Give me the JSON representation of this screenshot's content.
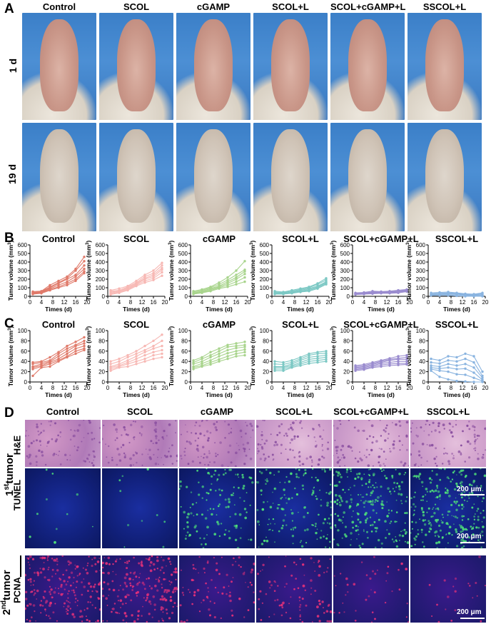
{
  "panels": {
    "a": "A",
    "b": "B",
    "c": "C",
    "d": "D"
  },
  "groups": [
    "Control",
    "SCOL",
    "cGAMP",
    "SCOL+L",
    "SCOL+cGAMP+L",
    "SSCOL+L"
  ],
  "panel_a": {
    "rows": [
      "1 d",
      "19 d"
    ]
  },
  "panel_d": {
    "stain_he": "H&E",
    "stain_tunel": "TUNEL",
    "stain_pcna": "PCNA",
    "first_tumor": {
      "num": "1",
      "sup": "st",
      "word": "tumor"
    },
    "second_tumor": {
      "num": "2",
      "sup": "nd",
      "word": "tumor"
    },
    "scale_label": "200 μm"
  },
  "colors": {
    "Control": "#e07a6a",
    "SCOL": "#f7b8b4",
    "cGAMP": "#a8d48c",
    "SCOL+L": "#7cc8c4",
    "SCOL+cGAMP+L": "#9a8ccf",
    "SSCOL+L": "#8ab4e0"
  },
  "chart_data": [
    {
      "panel": "B",
      "type": "line",
      "xlabel": "Times (d)",
      "ylabel": "Tumor volume (mm3)",
      "ylabel_main": "Tumor volume (mm",
      "ylabel_sup": "3",
      "ylabel_end": ")",
      "xticks": [
        0,
        4,
        8,
        12,
        16,
        20
      ],
      "yticks": [
        0,
        100,
        200,
        300,
        400,
        500,
        600
      ],
      "ylim": [
        0,
        600
      ],
      "xlim": [
        0,
        20
      ],
      "x": [
        1,
        4,
        7,
        10,
        13,
        16,
        19
      ],
      "groups": [
        {
          "name": "Control",
          "series": [
            [
              55,
              60,
              130,
              180,
              230,
              320,
              460
            ],
            [
              45,
              55,
              110,
              160,
              210,
              300,
              410
            ],
            [
              40,
              50,
              100,
              150,
              200,
              250,
              360
            ],
            [
              35,
              45,
              90,
              130,
              170,
              230,
              320
            ],
            [
              30,
              40,
              80,
              110,
              150,
              200,
              290
            ],
            [
              25,
              35,
              70,
              100,
              130,
              180,
              270
            ]
          ]
        },
        {
          "name": "SCOL",
          "series": [
            [
              70,
              90,
              120,
              180,
              250,
              300,
              390
            ],
            [
              60,
              70,
              110,
              160,
              230,
              270,
              360
            ],
            [
              50,
              60,
              100,
              150,
              210,
              250,
              330
            ],
            [
              40,
              55,
              90,
              140,
              200,
              230,
              310
            ],
            [
              30,
              45,
              80,
              130,
              180,
              210,
              280
            ],
            [
              20,
              40,
              70,
              120,
              160,
              190,
              240
            ]
          ]
        },
        {
          "name": "cGAMP",
          "series": [
            [
              60,
              80,
              110,
              160,
              220,
              300,
              410
            ],
            [
              50,
              70,
              100,
              140,
              190,
              250,
              310
            ],
            [
              40,
              60,
              90,
              120,
              170,
              220,
              290
            ],
            [
              35,
              50,
              80,
              110,
              150,
              200,
              260
            ],
            [
              30,
              45,
              70,
              100,
              130,
              170,
              220
            ],
            [
              25,
              40,
              60,
              90,
              110,
              140,
              170
            ]
          ]
        },
        {
          "name": "SCOL+L",
          "series": [
            [
              60,
              50,
              70,
              90,
              110,
              150,
              210
            ],
            [
              50,
              45,
              60,
              80,
              100,
              140,
              190
            ],
            [
              40,
              40,
              50,
              70,
              90,
              120,
              170
            ],
            [
              35,
              35,
              45,
              60,
              80,
              110,
              160
            ],
            [
              30,
              30,
              40,
              55,
              70,
              100,
              150
            ],
            [
              25,
              25,
              35,
              50,
              60,
              90,
              140
            ]
          ]
        },
        {
          "name": "SCOL+cGAMP+L",
          "series": [
            [
              40,
              45,
              60,
              55,
              60,
              70,
              80
            ],
            [
              35,
              40,
              50,
              50,
              55,
              60,
              75
            ],
            [
              30,
              35,
              45,
              45,
              50,
              55,
              70
            ],
            [
              28,
              30,
              40,
              40,
              45,
              50,
              65
            ],
            [
              25,
              28,
              35,
              38,
              40,
              45,
              60
            ],
            [
              20,
              25,
              30,
              35,
              35,
              40,
              55
            ]
          ]
        },
        {
          "name": "SSCOL+L",
          "series": [
            [
              40,
              45,
              50,
              40,
              30,
              25,
              40
            ],
            [
              30,
              35,
              40,
              35,
              25,
              20,
              30
            ],
            [
              25,
              30,
              35,
              30,
              20,
              15,
              20
            ],
            [
              20,
              25,
              30,
              25,
              15,
              10,
              10
            ],
            [
              15,
              20,
              20,
              15,
              10,
              5,
              5
            ],
            [
              10,
              10,
              10,
              5,
              0,
              0,
              0
            ]
          ]
        }
      ]
    },
    {
      "panel": "C",
      "type": "line",
      "xlabel": "Times (d)",
      "ylabel": "Tumor volume (mm3)",
      "ylabel_main": "Tumor volume (mm",
      "ylabel_sup": "3",
      "ylabel_end": ")",
      "xticks": [
        0,
        4,
        8,
        12,
        16,
        20
      ],
      "yticks": [
        0,
        20,
        40,
        60,
        80,
        100
      ],
      "ylim": [
        0,
        100
      ],
      "xlim": [
        0,
        20
      ],
      "x": [
        1,
        4,
        7,
        10,
        13,
        16,
        19
      ],
      "groups": [
        {
          "name": "Control",
          "series": [
            [
              38,
              40,
              48,
              58,
              70,
              78,
              87
            ],
            [
              35,
              38,
              42,
              55,
              65,
              72,
              80
            ],
            [
              30,
              35,
              40,
              50,
              60,
              70,
              75
            ],
            [
              28,
              32,
              38,
              45,
              55,
              65,
              70
            ],
            [
              25,
              30,
              35,
              42,
              50,
              60,
              65
            ],
            [
              12,
              28,
              30,
              40,
              48,
              55,
              62
            ]
          ]
        },
        {
          "name": "SCOL",
          "series": [
            [
              40,
              45,
              52,
              60,
              70,
              80,
              92
            ],
            [
              35,
              40,
              48,
              55,
              62,
              70,
              80
            ],
            [
              30,
              35,
              42,
              50,
              58,
              65,
              70
            ],
            [
              28,
              32,
              38,
              45,
              52,
              58,
              62
            ],
            [
              25,
              30,
              35,
              40,
              45,
              52,
              55
            ],
            [
              22,
              28,
              30,
              35,
              40,
              45,
              48
            ]
          ]
        },
        {
          "name": "cGAMP",
          "series": [
            [
              42,
              48,
              58,
              65,
              72,
              75,
              78
            ],
            [
              38,
              45,
              52,
              60,
              68,
              70,
              72
            ],
            [
              35,
              40,
              48,
              55,
              62,
              66,
              68
            ],
            [
              30,
              36,
              42,
              50,
              56,
              60,
              63
            ],
            [
              28,
              32,
              38,
              44,
              50,
              55,
              58
            ],
            [
              25,
              30,
              34,
              40,
              45,
              50,
              52
            ]
          ]
        },
        {
          "name": "SCOL+L",
          "series": [
            [
              40,
              38,
              42,
              48,
              55,
              58,
              60
            ],
            [
              35,
              34,
              38,
              45,
              52,
              55,
              56
            ],
            [
              30,
              30,
              35,
              42,
              48,
              50,
              52
            ],
            [
              28,
              28,
              32,
              38,
              44,
              46,
              48
            ],
            [
              25,
              25,
              30,
              35,
              40,
              42,
              44
            ],
            [
              22,
              22,
              28,
              32,
              36,
              38,
              40
            ]
          ]
        },
        {
          "name": "SCOL+cGAMP+L",
          "series": [
            [
              32,
              34,
              38,
              42,
              46,
              50,
              52
            ],
            [
              30,
              32,
              36,
              40,
              44,
              46,
              48
            ],
            [
              28,
              30,
              34,
              38,
              42,
              44,
              44
            ],
            [
              26,
              28,
              32,
              36,
              38,
              40,
              40
            ],
            [
              24,
              26,
              30,
              33,
              35,
              36,
              36
            ],
            [
              22,
              24,
              28,
              30,
              32,
              33,
              34
            ]
          ]
        },
        {
          "name": "SSCOL+L",
          "series": [
            [
              45,
              42,
              50,
              48,
              55,
              50,
              20
            ],
            [
              38,
              36,
              42,
              40,
              45,
              38,
              12
            ],
            [
              32,
              30,
              35,
              32,
              35,
              28,
              8
            ],
            [
              28,
              26,
              28,
              25,
              26,
              18,
              4
            ],
            [
              25,
              22,
              20,
              15,
              14,
              8,
              2
            ],
            [
              22,
              10,
              5,
              2,
              1,
              0,
              0
            ]
          ]
        }
      ]
    }
  ]
}
